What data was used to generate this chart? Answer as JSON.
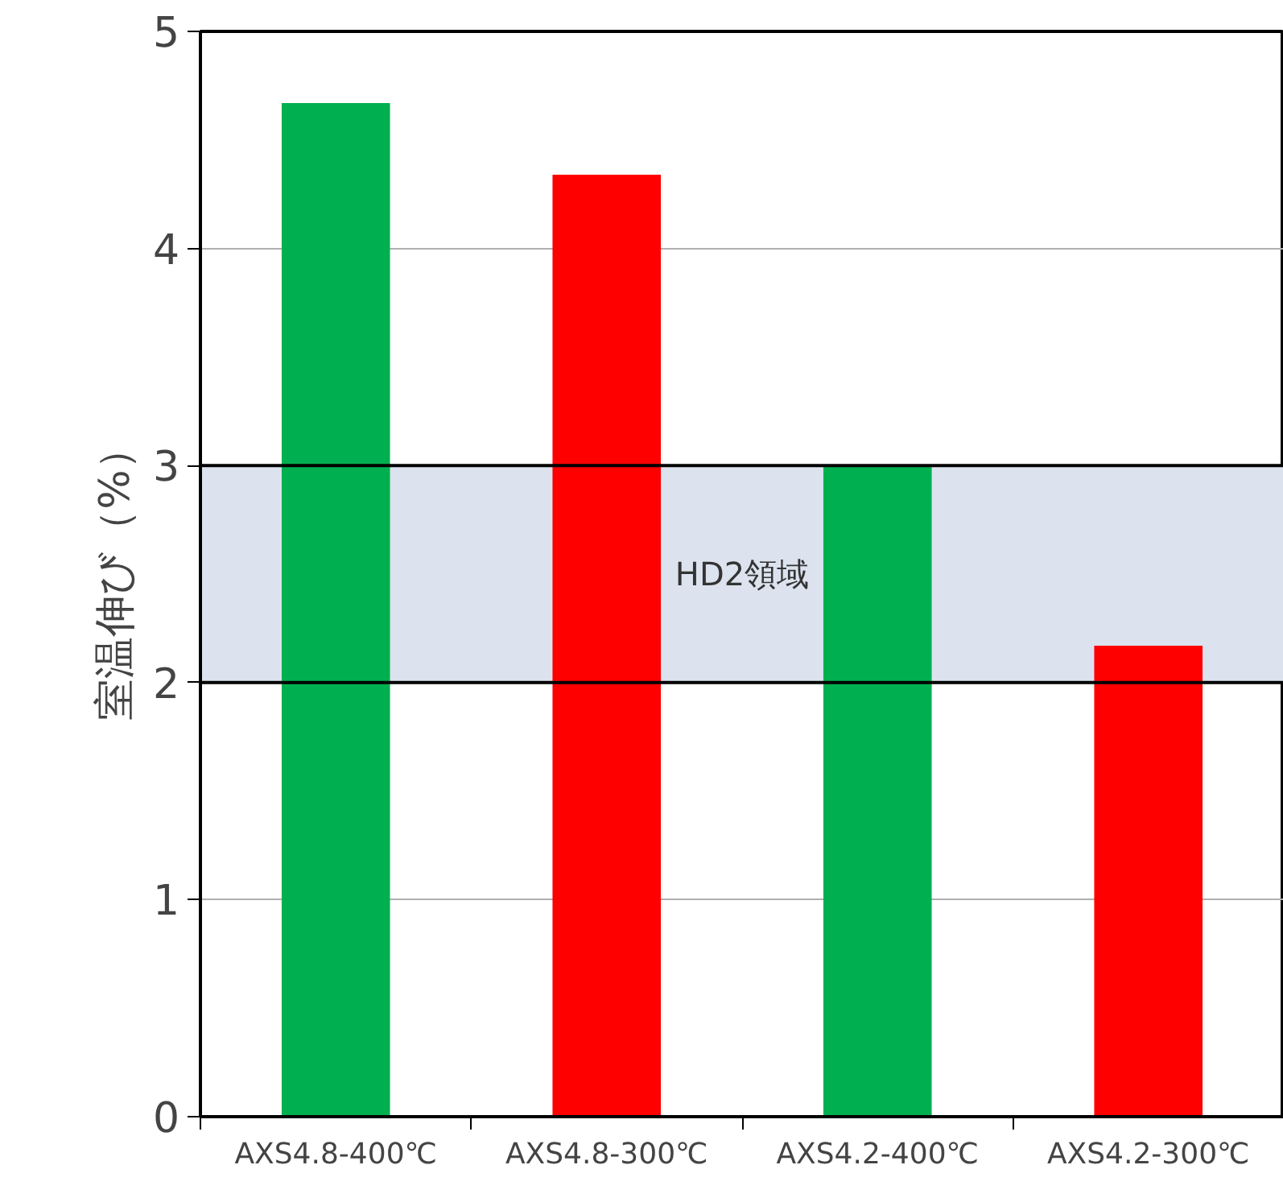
{
  "chart_data": {
    "type": "bar",
    "ylabel": "室温伸び（%）",
    "categories": [
      "AXS4.8-400℃",
      "AXS4.8-300℃",
      "AXS4.2-400℃",
      "AXS4.2-300℃"
    ],
    "values": [
      4.67,
      4.34,
      3.0,
      2.17
    ],
    "colors": [
      "#00b050",
      "#ff0000",
      "#00b050",
      "#ff0000"
    ],
    "ylim": [
      0,
      5
    ],
    "yticks": [
      0,
      1,
      2,
      3,
      4,
      5
    ],
    "grid": "y",
    "bands": [
      {
        "axis": "y",
        "from": 2,
        "to": 3,
        "label": "HD2領域",
        "color": "#dce3ef"
      }
    ]
  }
}
